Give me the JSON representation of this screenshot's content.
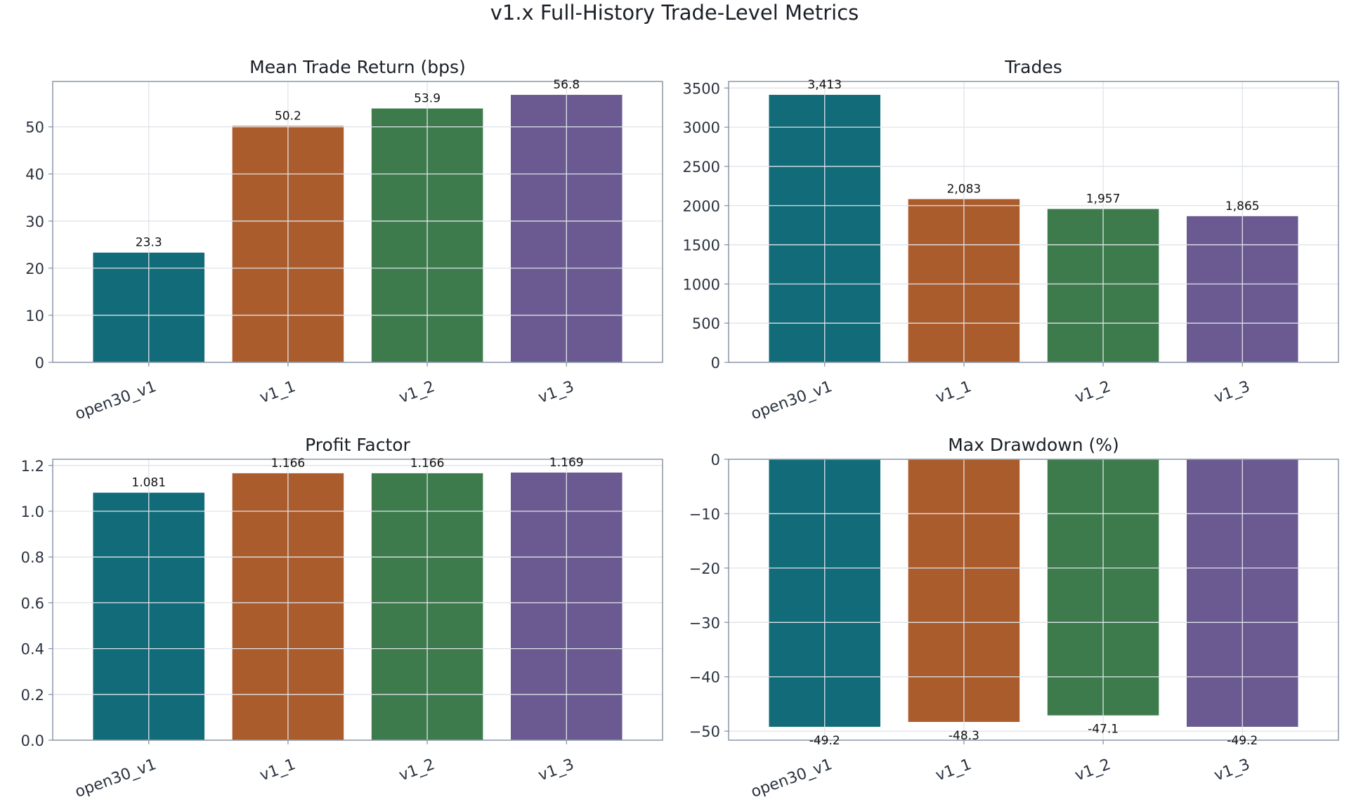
{
  "figure": {
    "title": "v1.x Full-History Trade-Level Metrics"
  },
  "colors": {
    "series": [
      "#116b78",
      "#ab5c2d",
      "#3d7b4d",
      "#6a5a91"
    ],
    "grid": "#dfe3e9",
    "frame": "#8a97a8",
    "tick_text": "#2b3340"
  },
  "chart_data": [
    {
      "type": "bar",
      "title": "Mean Trade Return (bps)",
      "categories": [
        "open30_v1",
        "v1_1",
        "v1_2",
        "v1_3"
      ],
      "values": [
        23.3,
        50.2,
        53.9,
        56.8
      ],
      "value_labels": [
        "23.3",
        "50.2",
        "53.9",
        "56.8"
      ],
      "ylim": [
        0,
        59.64
      ],
      "yticks": [
        0,
        10,
        20,
        30,
        40,
        50
      ],
      "ytick_labels": [
        "0",
        "10",
        "20",
        "30",
        "40",
        "50"
      ],
      "grid": true
    },
    {
      "type": "bar",
      "title": "Trades",
      "categories": [
        "open30_v1",
        "v1_1",
        "v1_2",
        "v1_3"
      ],
      "values": [
        3413,
        2083,
        1957,
        1865
      ],
      "value_labels": [
        "3,413",
        "2,083",
        "1,957",
        "1,865"
      ],
      "ylim": [
        0,
        3583.65
      ],
      "yticks": [
        0,
        500,
        1000,
        1500,
        2000,
        2500,
        3000,
        3500
      ],
      "ytick_labels": [
        "0",
        "500",
        "1000",
        "1500",
        "2000",
        "2500",
        "3000",
        "3500"
      ],
      "grid": true
    },
    {
      "type": "bar",
      "title": "Profit Factor",
      "categories": [
        "open30_v1",
        "v1_1",
        "v1_2",
        "v1_3"
      ],
      "values": [
        1.081,
        1.166,
        1.166,
        1.169
      ],
      "value_labels": [
        "1.081",
        "1.166",
        "1.166",
        "1.169"
      ],
      "ylim": [
        0,
        1.227
      ],
      "yticks": [
        0,
        0.2,
        0.4,
        0.6,
        0.8,
        1.0,
        1.2
      ],
      "ytick_labels": [
        "0.0",
        "0.2",
        "0.4",
        "0.6",
        "0.8",
        "1.0",
        "1.2"
      ],
      "grid": true
    },
    {
      "type": "bar",
      "title": "Max Drawdown (%)",
      "categories": [
        "open30_v1",
        "v1_1",
        "v1_2",
        "v1_3"
      ],
      "values": [
        -49.2,
        -48.3,
        -47.1,
        -49.2
      ],
      "value_labels": [
        "-49.2",
        "-48.3",
        "-47.1",
        "-49.2"
      ],
      "ylim": [
        -51.66,
        0
      ],
      "yticks": [
        0,
        -10,
        -20,
        -30,
        -40,
        -50
      ],
      "ytick_labels": [
        "0",
        "−10",
        "−20",
        "−30",
        "−40",
        "−50"
      ],
      "grid": true
    }
  ]
}
